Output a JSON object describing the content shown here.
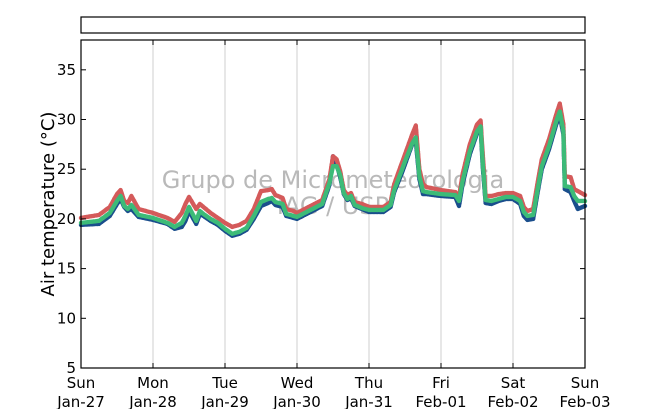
{
  "chart_data": {
    "type": "scatter",
    "ylabel": "Air temperature (°C)",
    "ylim": [
      5,
      38
    ],
    "yticks": [
      5,
      10,
      15,
      20,
      25,
      30,
      35
    ],
    "xlim": [
      0,
      7
    ],
    "xticks": [
      {
        "x": 0,
        "day": "Sun",
        "date": "Jan-27"
      },
      {
        "x": 1,
        "day": "Mon",
        "date": "Jan-28"
      },
      {
        "x": 2,
        "day": "Tue",
        "date": "Jan-29"
      },
      {
        "x": 3,
        "day": "Wed",
        "date": "Jan-30"
      },
      {
        "x": 4,
        "day": "Thu",
        "date": "Jan-31"
      },
      {
        "x": 5,
        "day": "Fri",
        "date": "Feb-01"
      },
      {
        "x": 6,
        "day": "Sat",
        "date": "Feb-02"
      },
      {
        "x": 7,
        "day": "Sun",
        "date": "Feb-03"
      }
    ],
    "grid": "vertical",
    "watermark": [
      "Grupo de Micrometeorologia",
      "IAG / USP"
    ],
    "series": [
      {
        "color": "#1a4e8c",
        "points": [
          [
            0,
            19.4
          ],
          [
            0.25,
            19.5
          ],
          [
            0.4,
            20.3
          ],
          [
            0.5,
            21.5
          ],
          [
            0.55,
            22.0
          ],
          [
            0.6,
            21.2
          ],
          [
            0.65,
            20.8
          ],
          [
            0.7,
            21.0
          ],
          [
            0.8,
            20.2
          ],
          [
            1.0,
            19.9
          ],
          [
            1.2,
            19.5
          ],
          [
            1.3,
            19.0
          ],
          [
            1.4,
            19.2
          ],
          [
            1.45,
            19.8
          ],
          [
            1.5,
            20.8
          ],
          [
            1.6,
            19.5
          ],
          [
            1.65,
            20.5
          ],
          [
            1.7,
            20.3
          ],
          [
            1.8,
            19.8
          ],
          [
            1.9,
            19.4
          ],
          [
            2.0,
            18.8
          ],
          [
            2.1,
            18.3
          ],
          [
            2.2,
            18.5
          ],
          [
            2.3,
            18.9
          ],
          [
            2.4,
            20.0
          ],
          [
            2.5,
            21.3
          ],
          [
            2.6,
            21.6
          ],
          [
            2.65,
            21.8
          ],
          [
            2.7,
            21.4
          ],
          [
            2.8,
            21.2
          ],
          [
            2.85,
            20.3
          ],
          [
            2.95,
            20.1
          ],
          [
            3.0,
            20.0
          ],
          [
            3.35,
            21.3
          ],
          [
            3.45,
            23.4
          ],
          [
            3.5,
            26.3
          ],
          [
            3.55,
            25.5
          ],
          [
            3.6,
            24.2
          ],
          [
            3.65,
            22.5
          ],
          [
            3.7,
            21.9
          ],
          [
            3.75,
            22.1
          ],
          [
            3.8,
            21.3
          ],
          [
            3.9,
            21.0
          ],
          [
            4.0,
            20.7
          ],
          [
            4.2,
            20.7
          ],
          [
            4.3,
            21.2
          ],
          [
            4.35,
            22.7
          ],
          [
            4.45,
            24.5
          ],
          [
            4.5,
            25.5
          ],
          [
            4.6,
            27.5
          ],
          [
            4.65,
            27.8
          ],
          [
            4.7,
            24.0
          ],
          [
            4.75,
            22.5
          ],
          [
            4.8,
            22.5
          ],
          [
            5.0,
            22.3
          ],
          [
            5.2,
            22.2
          ],
          [
            5.25,
            21.3
          ],
          [
            5.3,
            23.5
          ],
          [
            5.4,
            26.5
          ],
          [
            5.5,
            28.6
          ],
          [
            5.55,
            29.2
          ],
          [
            5.58,
            25.2
          ],
          [
            5.62,
            21.6
          ],
          [
            5.7,
            21.5
          ],
          [
            5.8,
            21.8
          ],
          [
            5.9,
            22.0
          ],
          [
            6.0,
            22.0
          ],
          [
            6.1,
            21.5
          ],
          [
            6.15,
            20.3
          ],
          [
            6.2,
            19.9
          ],
          [
            6.28,
            20.0
          ],
          [
            6.35,
            23.0
          ],
          [
            6.4,
            25.0
          ],
          [
            6.5,
            27.0
          ],
          [
            6.6,
            29.5
          ],
          [
            6.65,
            30.4
          ],
          [
            6.7,
            28.5
          ],
          [
            6.72,
            23.0
          ],
          [
            6.8,
            22.7
          ],
          [
            6.85,
            21.8
          ],
          [
            6.9,
            21.0
          ],
          [
            7.0,
            21.3
          ]
        ]
      },
      {
        "color": "#d45a5a",
        "points": [
          [
            0,
            20.1
          ],
          [
            0.25,
            20.4
          ],
          [
            0.4,
            21.2
          ],
          [
            0.5,
            22.5
          ],
          [
            0.55,
            22.9
          ],
          [
            0.6,
            21.8
          ],
          [
            0.65,
            21.6
          ],
          [
            0.7,
            22.3
          ],
          [
            0.8,
            21.0
          ],
          [
            1.0,
            20.6
          ],
          [
            1.2,
            20.1
          ],
          [
            1.3,
            19.7
          ],
          [
            1.4,
            20.6
          ],
          [
            1.45,
            21.5
          ],
          [
            1.5,
            22.2
          ],
          [
            1.6,
            21.0
          ],
          [
            1.65,
            21.5
          ],
          [
            1.7,
            21.2
          ],
          [
            1.8,
            20.6
          ],
          [
            1.9,
            20.1
          ],
          [
            2.0,
            19.6
          ],
          [
            2.1,
            19.2
          ],
          [
            2.2,
            19.4
          ],
          [
            2.3,
            19.8
          ],
          [
            2.4,
            21.0
          ],
          [
            2.5,
            22.8
          ],
          [
            2.6,
            22.9
          ],
          [
            2.65,
            23.0
          ],
          [
            2.7,
            22.4
          ],
          [
            2.8,
            22.1
          ],
          [
            2.85,
            21.0
          ],
          [
            2.95,
            20.8
          ],
          [
            3.0,
            20.6
          ],
          [
            3.35,
            21.9
          ],
          [
            3.45,
            24.0
          ],
          [
            3.5,
            26.3
          ],
          [
            3.55,
            26.0
          ],
          [
            3.6,
            24.8
          ],
          [
            3.65,
            22.9
          ],
          [
            3.7,
            22.4
          ],
          [
            3.75,
            22.6
          ],
          [
            3.8,
            21.7
          ],
          [
            3.9,
            21.5
          ],
          [
            4.0,
            21.2
          ],
          [
            4.2,
            21.2
          ],
          [
            4.3,
            21.7
          ],
          [
            4.35,
            23.5
          ],
          [
            4.45,
            25.5
          ],
          [
            4.5,
            26.5
          ],
          [
            4.6,
            28.5
          ],
          [
            4.65,
            29.4
          ],
          [
            4.7,
            25.0
          ],
          [
            4.75,
            23.5
          ],
          [
            4.8,
            23.2
          ],
          [
            5.0,
            22.9
          ],
          [
            5.2,
            22.7
          ],
          [
            5.25,
            22.2
          ],
          [
            5.3,
            24.5
          ],
          [
            5.4,
            27.5
          ],
          [
            5.5,
            29.5
          ],
          [
            5.55,
            29.9
          ],
          [
            5.58,
            26.5
          ],
          [
            5.62,
            22.3
          ],
          [
            5.7,
            22.3
          ],
          [
            5.8,
            22.5
          ],
          [
            5.9,
            22.6
          ],
          [
            6.0,
            22.6
          ],
          [
            6.1,
            22.3
          ],
          [
            6.15,
            21.2
          ],
          [
            6.2,
            20.8
          ],
          [
            6.28,
            21.0
          ],
          [
            6.35,
            24.0
          ],
          [
            6.4,
            26.0
          ],
          [
            6.5,
            28.0
          ],
          [
            6.6,
            30.5
          ],
          [
            6.65,
            31.6
          ],
          [
            6.7,
            29.5
          ],
          [
            6.72,
            24.3
          ],
          [
            6.8,
            24.2
          ],
          [
            6.85,
            23.0
          ],
          [
            6.9,
            22.8
          ],
          [
            7.0,
            22.4
          ]
        ]
      },
      {
        "color": "#3dbb78",
        "points": [
          [
            0,
            19.6
          ],
          [
            0.25,
            19.8
          ],
          [
            0.4,
            20.6
          ],
          [
            0.5,
            21.8
          ],
          [
            0.55,
            22.3
          ],
          [
            0.6,
            21.3
          ],
          [
            0.65,
            21.0
          ],
          [
            0.7,
            21.4
          ],
          [
            0.8,
            20.4
          ],
          [
            1.0,
            20.1
          ],
          [
            1.2,
            19.6
          ],
          [
            1.3,
            19.2
          ],
          [
            1.4,
            19.6
          ],
          [
            1.45,
            20.3
          ],
          [
            1.5,
            21.2
          ],
          [
            1.6,
            19.8
          ],
          [
            1.65,
            20.8
          ],
          [
            1.7,
            20.5
          ],
          [
            1.8,
            20.0
          ],
          [
            1.9,
            19.6
          ],
          [
            2.0,
            19.0
          ],
          [
            2.1,
            18.5
          ],
          [
            2.2,
            18.7
          ],
          [
            2.3,
            19.1
          ],
          [
            2.4,
            20.3
          ],
          [
            2.5,
            21.7
          ],
          [
            2.6,
            22.0
          ],
          [
            2.65,
            22.1
          ],
          [
            2.7,
            21.7
          ],
          [
            2.8,
            21.5
          ],
          [
            2.85,
            20.5
          ],
          [
            2.95,
            20.3
          ],
          [
            3.0,
            20.2
          ],
          [
            3.35,
            21.5
          ],
          [
            3.45,
            23.6
          ],
          [
            3.5,
            25.3
          ],
          [
            3.55,
            25.3
          ],
          [
            3.6,
            24.4
          ],
          [
            3.65,
            22.6
          ],
          [
            3.7,
            22.0
          ],
          [
            3.75,
            22.3
          ],
          [
            3.8,
            21.4
          ],
          [
            3.9,
            21.1
          ],
          [
            4.0,
            20.9
          ],
          [
            4.2,
            20.9
          ],
          [
            4.3,
            21.4
          ],
          [
            4.35,
            22.9
          ],
          [
            4.45,
            24.8
          ],
          [
            4.5,
            25.8
          ],
          [
            4.6,
            27.6
          ],
          [
            4.65,
            28.2
          ],
          [
            4.7,
            24.3
          ],
          [
            4.75,
            22.8
          ],
          [
            4.8,
            22.7
          ],
          [
            5.0,
            22.5
          ],
          [
            5.2,
            22.4
          ],
          [
            5.25,
            21.8
          ],
          [
            5.3,
            23.8
          ],
          [
            5.4,
            26.8
          ],
          [
            5.5,
            28.8
          ],
          [
            5.55,
            29.3
          ],
          [
            5.58,
            25.6
          ],
          [
            5.62,
            21.9
          ],
          [
            5.7,
            21.8
          ],
          [
            5.8,
            22.0
          ],
          [
            5.9,
            22.2
          ],
          [
            6.0,
            22.2
          ],
          [
            6.1,
            21.8
          ],
          [
            6.15,
            20.7
          ],
          [
            6.2,
            20.3
          ],
          [
            6.28,
            20.4
          ],
          [
            6.35,
            23.3
          ],
          [
            6.4,
            25.3
          ],
          [
            6.5,
            27.3
          ],
          [
            6.6,
            29.8
          ],
          [
            6.65,
            30.8
          ],
          [
            6.7,
            28.8
          ],
          [
            6.72,
            23.3
          ],
          [
            6.8,
            23.2
          ],
          [
            6.85,
            22.3
          ],
          [
            6.9,
            21.8
          ],
          [
            7.0,
            21.8
          ]
        ]
      }
    ]
  }
}
